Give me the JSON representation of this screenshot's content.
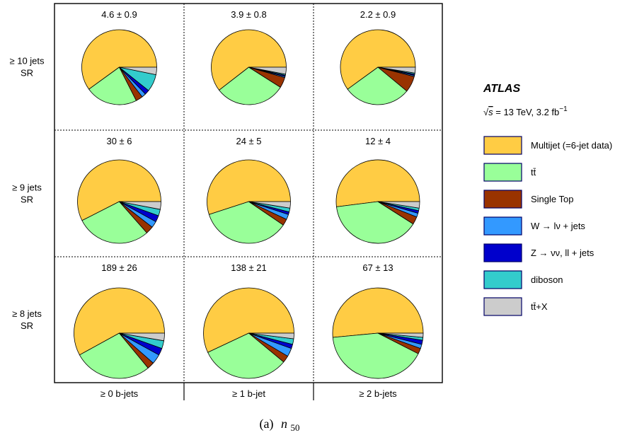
{
  "chart_data": {
    "type": "pie",
    "columns": [
      "≥ 0 b-jets",
      "≥ 1 b-jet",
      "≥ 2 b-jets"
    ],
    "rows": [
      {
        "line1": "≥ 10 jets",
        "line2": "SR"
      },
      {
        "line1": "≥ 9 jets",
        "line2": "SR"
      },
      {
        "line1": "≥ 8 jets",
        "line2": "SR"
      }
    ],
    "legend": {
      "experiment": "ATLAS",
      "energy_prefix": "s",
      "energy_text": " = 13 TeV, 3.2 fb",
      "energy_sup": "−1",
      "entries": [
        {
          "label": "Multijet (=6-jet data)",
          "color": "#FFCC44"
        },
        {
          "label": "tt̄",
          "color": "#99FF99"
        },
        {
          "label": "Single Top",
          "color": "#993300"
        },
        {
          "label": "W → lν + jets",
          "color": "#3399FF"
        },
        {
          "label": "Z → νν, ll + jets",
          "color": "#0000CC"
        },
        {
          "label": "diboson",
          "color": "#33CCCC"
        },
        {
          "label": "tt̄+X",
          "color": "#CCCCCC"
        }
      ]
    },
    "pies": [
      {
        "row": 0,
        "col": 0,
        "label": "4.6 ± 0.9",
        "fractions": [
          0.6,
          0.225,
          0.03,
          0.018,
          0.02,
          0.075,
          0.032
        ]
      },
      {
        "row": 0,
        "col": 1,
        "label": "3.9 ± 0.8",
        "fractions": [
          0.605,
          0.305,
          0.045,
          0.005,
          0.005,
          0.005,
          0.03
        ]
      },
      {
        "row": 0,
        "col": 2,
        "label": "2.2 ± 0.9",
        "fractions": [
          0.6,
          0.29,
          0.07,
          0.005,
          0.005,
          0.005,
          0.025
        ]
      },
      {
        "row": 1,
        "col": 0,
        "label": "30 ± 6",
        "fractions": [
          0.575,
          0.29,
          0.03,
          0.025,
          0.025,
          0.025,
          0.03
        ]
      },
      {
        "row": 1,
        "col": 1,
        "label": "24 ± 5",
        "fractions": [
          0.55,
          0.355,
          0.025,
          0.02,
          0.01,
          0.015,
          0.025
        ]
      },
      {
        "row": 1,
        "col": 2,
        "label": "12 ± 4",
        "fractions": [
          0.52,
          0.39,
          0.03,
          0.015,
          0.01,
          0.01,
          0.025
        ]
      },
      {
        "row": 2,
        "col": 0,
        "label": "189 ± 26",
        "fractions": [
          0.58,
          0.28,
          0.025,
          0.035,
          0.025,
          0.028,
          0.027
        ]
      },
      {
        "row": 2,
        "col": 1,
        "label": "138 ± 21",
        "fractions": [
          0.57,
          0.32,
          0.025,
          0.03,
          0.015,
          0.02,
          0.02
        ]
      },
      {
        "row": 2,
        "col": 2,
        "label": "67 ± 13",
        "fractions": [
          0.515,
          0.41,
          0.02,
          0.015,
          0.015,
          0.01,
          0.015
        ]
      }
    ]
  },
  "caption": {
    "prefix": "(a)",
    "var": "n",
    "sub": "50"
  }
}
